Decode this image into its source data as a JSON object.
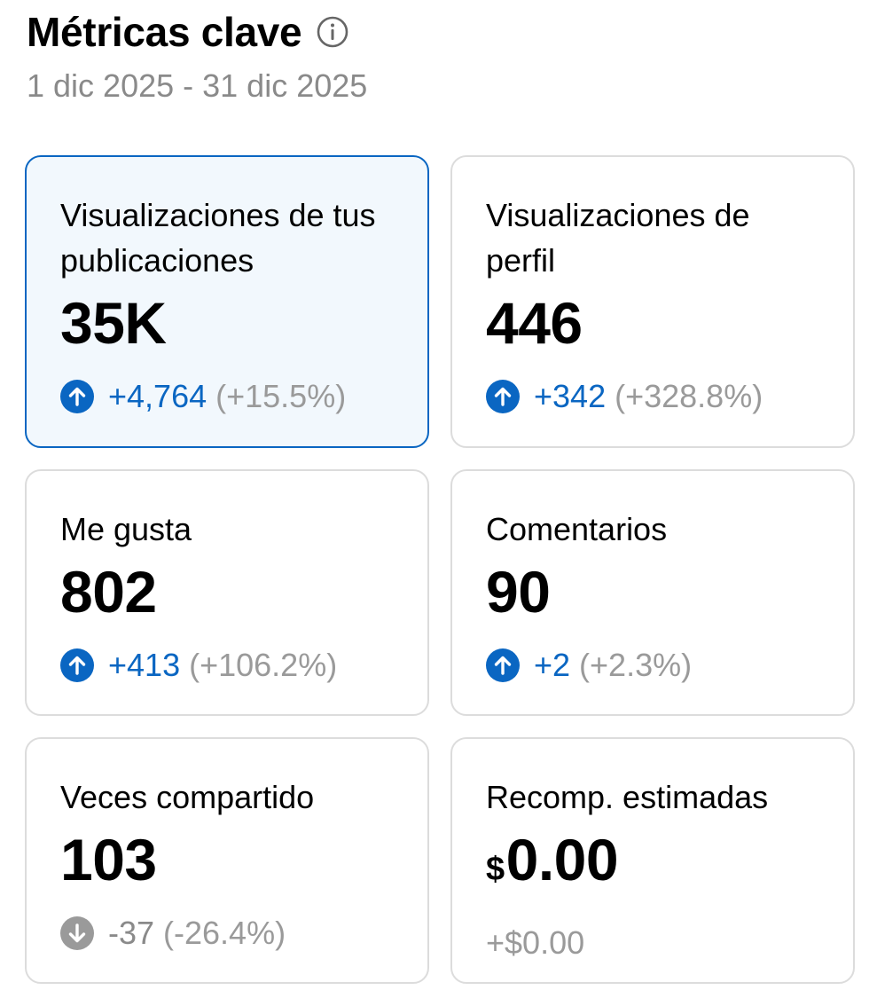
{
  "header": {
    "title": "Métricas clave",
    "date_range": "1 dic 2025 - 31 dic 2025",
    "info_icon": "info-icon"
  },
  "colors": {
    "accent_blue": "#0a66c2",
    "selected_bg": "#f2f8fd",
    "muted_gray": "#8a8a8a",
    "border": "#dcdcdc"
  },
  "metrics": [
    {
      "label": "Visualizaciones de tus publicaciones",
      "value": "35K",
      "delta": "+4,764",
      "pct": "(+15.5%)",
      "trend": "up",
      "selected": true
    },
    {
      "label": "Visualizaciones de perfil",
      "value": "446",
      "delta": "+342",
      "pct": "(+328.8%)",
      "trend": "up"
    },
    {
      "label": "Me gusta",
      "value": "802",
      "delta": "+413",
      "pct": "(+106.2%)",
      "trend": "up"
    },
    {
      "label": "Comentarios",
      "value": "90",
      "delta": "+2",
      "pct": "(+2.3%)",
      "trend": "up"
    },
    {
      "label": "Veces compartido",
      "value": "103",
      "delta": "-37",
      "pct": "(-26.4%)",
      "trend": "down"
    },
    {
      "label": "Recomp. estimadas",
      "currency": "$",
      "value": "0.00",
      "delta": "+$0.00",
      "trend": "neutral"
    }
  ]
}
